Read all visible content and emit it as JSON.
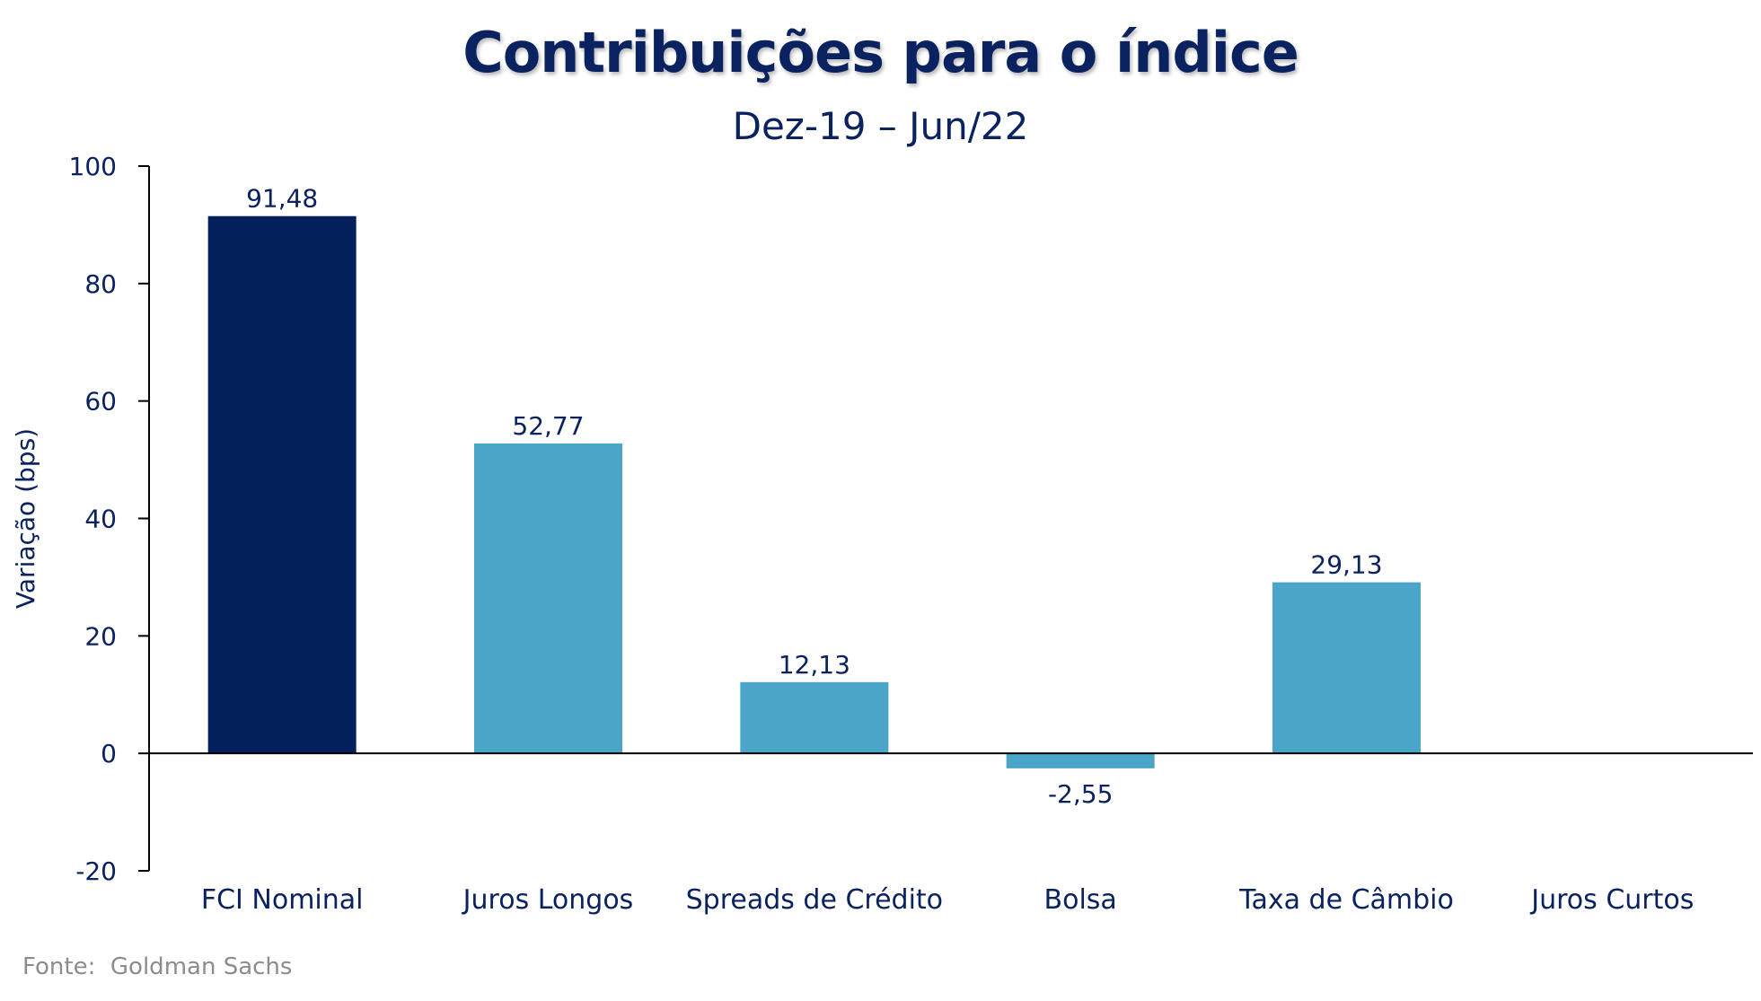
{
  "chart_data": {
    "type": "bar",
    "title": "Contribuições para o índice",
    "subtitle": "Dez-19 – Jun/22",
    "ylabel": "Variação (bps)",
    "xlabel": "",
    "ylim": [
      -20,
      100
    ],
    "yticks": [
      "100",
      "80",
      "60",
      "40",
      "20",
      "0",
      "-20"
    ],
    "yticks_values": [
      100,
      80,
      60,
      40,
      20,
      0,
      -20
    ],
    "categories": [
      "FCI Nominal",
      "Juros Longos",
      "Spreads de Crédito",
      "Bolsa",
      "Taxa de Câmbio",
      "Juros Curtos"
    ],
    "values": [
      91.48,
      52.77,
      12.13,
      -2.55,
      29.13,
      0
    ],
    "value_labels": [
      "91,48",
      "52,77",
      "12,13",
      "-2,55",
      "29,13",
      ""
    ],
    "colors": [
      "#03205c",
      "#4aa5c8",
      "#4aa5c8",
      "#4aa5c8",
      "#4aa5c8",
      "#4aa5c8"
    ],
    "grid": false,
    "legend": "none"
  },
  "footer": {
    "source_label": "Fonte:",
    "source_value": "Goldman Sachs"
  },
  "colors": {
    "text": "#0a2260",
    "axis": "#000000",
    "footer": "#8c8c8c"
  }
}
